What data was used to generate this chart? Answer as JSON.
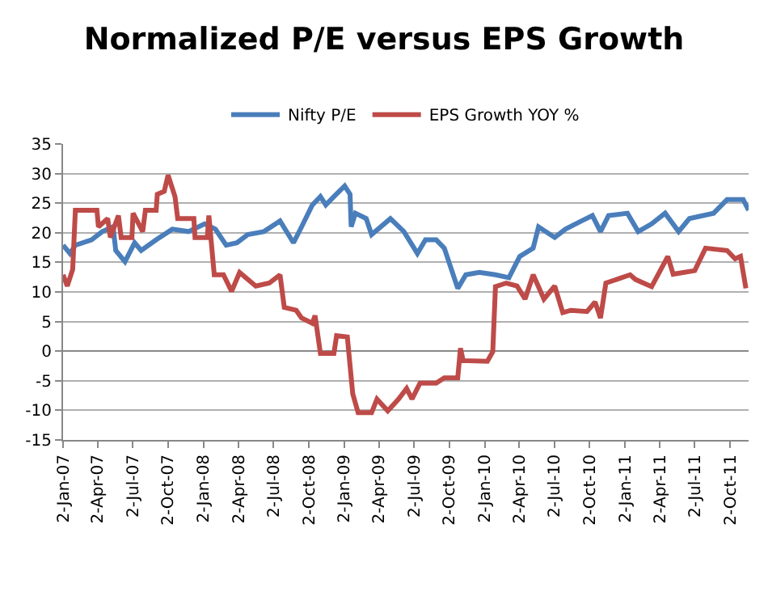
{
  "chart_data": {
    "type": "line",
    "title": "Normalized P/E versus EPS Growth",
    "x": [
      "2007-01-02",
      "2007-01-20",
      "2007-02-03",
      "2007-03-17",
      "2007-04-14",
      "2007-05-12",
      "2007-05-19",
      "2007-06-12",
      "2007-07-07",
      "2007-07-24",
      "2007-09-01",
      "2007-10-13",
      "2007-11-24",
      "2008-01-05",
      "2008-02-02",
      "2008-03-01",
      "2008-03-29",
      "2008-04-26",
      "2008-06-07",
      "2008-07-19",
      "2008-08-23",
      "2008-09-13",
      "2008-10-11",
      "2008-11-01",
      "2008-11-15",
      "2008-12-06",
      "2009-01-03",
      "2009-01-17",
      "2009-01-20",
      "2009-01-31",
      "2009-02-28",
      "2009-03-14",
      "2009-04-25",
      "2009-05-02",
      "2009-06-06",
      "2009-07-11",
      "2009-08-01",
      "2009-08-29",
      "2009-09-19",
      "2009-10-24",
      "2009-11-14",
      "2009-12-19",
      "2010-01-30",
      "2010-03-06",
      "2010-04-03",
      "2010-05-08",
      "2010-05-22",
      "2010-07-03",
      "2010-07-31",
      "2010-09-11",
      "2010-10-09",
      "2010-10-30",
      "2010-11-20",
      "2011-01-08",
      "2011-02-05",
      "2011-03-12",
      "2011-04-16",
      "2011-05-21",
      "2011-06-18",
      "2011-08-20",
      "2011-09-24",
      "2011-11-05",
      "2011-11-19"
    ],
    "series": [
      {
        "name": "Nifty P/E",
        "color": "#4a7ebb",
        "values": [
          17.9,
          16.5,
          17.9,
          18.8,
          20.2,
          21,
          17,
          15.1,
          18.3,
          17,
          18.8,
          20.6,
          20.2,
          21.5,
          20.6,
          17.9,
          18.3,
          19.7,
          20.2,
          22,
          18.3,
          21,
          24.7,
          26.1,
          24.7,
          26.1,
          27.9,
          26.5,
          21,
          23.3,
          22.4,
          19.7,
          22,
          22.4,
          20.2,
          16.5,
          18.8,
          18.8,
          17.4,
          10.6,
          12.9,
          13.3,
          12.9,
          12.4,
          16,
          17.4,
          21,
          19.2,
          20.6,
          22,
          22.9,
          20.2,
          22.9,
          23.3,
          20.2,
          21.5,
          23.3,
          20.2,
          22.4,
          23.3,
          25.6,
          25.6,
          23.8
        ]
      },
      {
        "name": "EPS Growth YOY %",
        "color": "#be4b48",
        "x": [
          "2007-01-02",
          "2007-01-13",
          "2007-01-27",
          "2007-02-03",
          "2007-03-31",
          "2007-04-04",
          "2007-04-28",
          "2007-05-05",
          "2007-05-26",
          "2007-06-02",
          "2007-06-30",
          "2007-07-03",
          "2007-07-28",
          "2007-08-04",
          "2007-09-01",
          "2007-09-04",
          "2007-09-22",
          "2007-10-02",
          "2007-10-20",
          "2007-10-27",
          "2007-12-08",
          "2007-12-11",
          "2008-01-12",
          "2008-01-16",
          "2008-01-30",
          "2008-02-23",
          "2008-03-15",
          "2008-04-05",
          "2008-05-17",
          "2008-06-21",
          "2008-07-19",
          "2008-07-30",
          "2008-08-30",
          "2008-09-13",
          "2008-10-11",
          "2008-10-18",
          "2008-11-01",
          "2008-12-06",
          "2008-12-13",
          "2009-01-10",
          "2009-01-24",
          "2009-02-07",
          "2009-03-14",
          "2009-03-28",
          "2009-04-25",
          "2009-05-23",
          "2009-06-13",
          "2009-06-27",
          "2009-07-18",
          "2009-08-29",
          "2009-09-19",
          "2009-10-24",
          "2009-10-31",
          "2009-11-07",
          "2010-01-09",
          "2010-01-23",
          "2010-01-30",
          "2010-02-27",
          "2010-03-27",
          "2010-04-17",
          "2010-05-08",
          "2010-06-05",
          "2010-07-03",
          "2010-07-24",
          "2010-08-14",
          "2010-09-25",
          "2010-10-16",
          "2010-10-30",
          "2010-11-13",
          "2011-01-15",
          "2011-01-29",
          "2011-03-12",
          "2011-04-23",
          "2011-05-07",
          "2011-07-02",
          "2011-07-30",
          "2011-09-24",
          "2011-10-15",
          "2011-10-29",
          "2011-11-12"
        ],
        "values": [
          12.9,
          11,
          13.8,
          23.8,
          23.8,
          21,
          22.4,
          19.2,
          22.9,
          19.2,
          19.2,
          23.3,
          20.2,
          23.8,
          23.8,
          26.5,
          27,
          29.7,
          26.1,
          22.4,
          22.4,
          19.2,
          19.2,
          22.9,
          12.9,
          12.9,
          10.1,
          13.3,
          11,
          11.5,
          12.9,
          7.4,
          6.9,
          5.6,
          4.7,
          6,
          -0.4,
          -0.4,
          2.6,
          2.4,
          -7.2,
          -10.4,
          -10.4,
          -8.1,
          -10.1,
          -8.1,
          -6.3,
          -8.1,
          -5.4,
          -5.4,
          -4.5,
          -4.5,
          0.5,
          -1.6,
          -1.7,
          -0.1,
          10.9,
          11.5,
          11,
          8.8,
          12.9,
          8.8,
          11,
          6.5,
          6.9,
          6.7,
          8.3,
          5.6,
          11.5,
          12.9,
          12.1,
          10.9,
          16,
          13,
          13.6,
          17.4,
          17,
          15.6,
          16,
          10.6
        ]
      }
    ],
    "xlim": [
      "2007-01-02",
      "2011-11-19"
    ],
    "xticks": [
      {
        "value": "2007-01-02",
        "label": "2-Jan-07"
      },
      {
        "value": "2007-04-02",
        "label": "2-Apr-07"
      },
      {
        "value": "2007-07-02",
        "label": "2-Jul-07"
      },
      {
        "value": "2007-10-02",
        "label": "2-Oct-07"
      },
      {
        "value": "2008-01-02",
        "label": "2-Jan-08"
      },
      {
        "value": "2008-04-02",
        "label": "2-Apr-08"
      },
      {
        "value": "2008-07-02",
        "label": "2-Jul-08"
      },
      {
        "value": "2008-10-02",
        "label": "2-Oct-08"
      },
      {
        "value": "2009-01-02",
        "label": "2-Jan-09"
      },
      {
        "value": "2009-04-02",
        "label": "2-Apr-09"
      },
      {
        "value": "2009-07-02",
        "label": "2-Jul-09"
      },
      {
        "value": "2009-10-02",
        "label": "2-Oct-09"
      },
      {
        "value": "2010-01-02",
        "label": "2-Jan-10"
      },
      {
        "value": "2010-04-02",
        "label": "2-Apr-10"
      },
      {
        "value": "2010-07-02",
        "label": "2-Jul-10"
      },
      {
        "value": "2010-10-02",
        "label": "2-Oct-10"
      },
      {
        "value": "2011-01-02",
        "label": "2-Jan-11"
      },
      {
        "value": "2011-04-02",
        "label": "2-Apr-11"
      },
      {
        "value": "2011-07-02",
        "label": "2-Jul-11"
      },
      {
        "value": "2011-10-02",
        "label": "2-Oct-11"
      }
    ],
    "ylim": [
      -15,
      35
    ],
    "yticks": [
      -15,
      -10,
      -5,
      0,
      5,
      10,
      15,
      20,
      25,
      30,
      35
    ],
    "grid": "y",
    "legend": "top",
    "marker": "none",
    "line_style": "solid"
  }
}
